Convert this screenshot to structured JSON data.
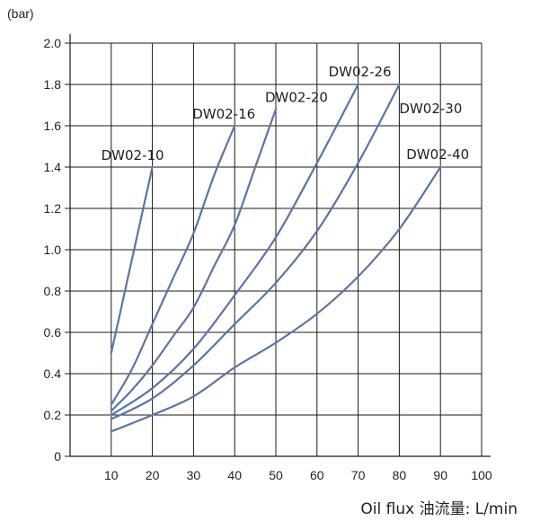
{
  "chart_data": {
    "type": "line",
    "title": "",
    "xlabel": "Oil flux 油流量: L/min",
    "ylabel": "(bar)",
    "xlim": [
      0,
      100
    ],
    "ylim": [
      0,
      2.0
    ],
    "x_ticks": [
      10,
      20,
      30,
      40,
      50,
      60,
      70,
      80,
      90,
      100
    ],
    "y_ticks": [
      0,
      0.2,
      0.4,
      0.6,
      0.8,
      1.0,
      1.2,
      1.4,
      1.6,
      1.8,
      2.0
    ],
    "x_tick_labels": [
      "10",
      "20",
      "30",
      "40",
      "50",
      "60",
      "70",
      "80",
      "90",
      "100"
    ],
    "y_tick_labels": [
      "0",
      "0.2",
      "0.4",
      "0.6",
      "0.8",
      "1.0",
      "1.2",
      "1.4",
      "1.6",
      "1.8",
      "2.0"
    ],
    "grid": true,
    "line_color": "#5b74a8",
    "series": [
      {
        "name": "DW02-10",
        "x": [
          10,
          12,
          14,
          16,
          18,
          20
        ],
        "y": [
          0.5,
          0.68,
          0.86,
          1.04,
          1.22,
          1.4
        ]
      },
      {
        "name": "DW02-16",
        "x": [
          10,
          15,
          20,
          25,
          30,
          35,
          40
        ],
        "y": [
          0.25,
          0.42,
          0.64,
          0.86,
          1.08,
          1.36,
          1.6
        ]
      },
      {
        "name": "DW02-20",
        "x": [
          10,
          15,
          20,
          25,
          30,
          35,
          40,
          45,
          50
        ],
        "y": [
          0.22,
          0.32,
          0.44,
          0.58,
          0.72,
          0.92,
          1.12,
          1.4,
          1.68
        ]
      },
      {
        "name": "DW02-26",
        "x": [
          10,
          20,
          30,
          40,
          50,
          60,
          70
        ],
        "y": [
          0.2,
          0.33,
          0.52,
          0.78,
          1.06,
          1.42,
          1.8
        ]
      },
      {
        "name": "DW02-30",
        "x": [
          10,
          20,
          30,
          40,
          50,
          60,
          70,
          80
        ],
        "y": [
          0.18,
          0.28,
          0.44,
          0.64,
          0.84,
          1.09,
          1.42,
          1.8
        ]
      },
      {
        "name": "DW02-40",
        "x": [
          10,
          20,
          30,
          40,
          50,
          60,
          70,
          80,
          90
        ],
        "y": [
          0.12,
          0.2,
          0.29,
          0.43,
          0.55,
          0.69,
          0.87,
          1.1,
          1.4
        ]
      }
    ]
  }
}
